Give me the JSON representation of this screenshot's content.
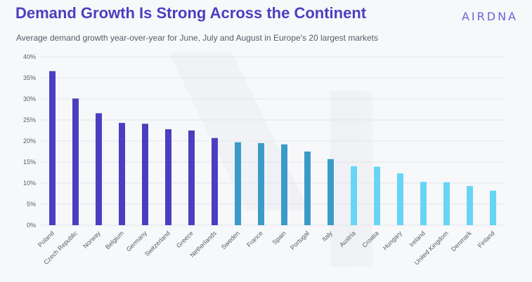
{
  "header": {
    "title": "Demand Growth Is Strong Across the Continent",
    "subtitle": "Average demand growth year-over-year for June, July and August in Europe's 20 largest markets",
    "logo": "AIRDNA"
  },
  "colors": {
    "bars": [
      "#4b3fc0",
      "#4b3fc0",
      "#4b3fc0",
      "#4b3fc0",
      "#4b3fc0",
      "#4b3fc0",
      "#4b3fc0",
      "#4b3fc0",
      "#3a9bc9",
      "#3a9bc9",
      "#3a9bc9",
      "#3a9bc9",
      "#3a9bc9",
      "#67d5f5",
      "#67d5f5",
      "#67d5f5",
      "#67d5f5",
      "#67d5f5",
      "#67d5f5",
      "#67d5f5"
    ],
    "grid": "#e2e5ea",
    "text": "#555c66"
  },
  "chart_data": {
    "type": "bar",
    "title": "Demand Growth Is Strong Across the Continent",
    "xlabel": "",
    "ylabel": "",
    "ylim": [
      0,
      40
    ],
    "y_ticks": [
      "0%",
      "5%",
      "10%",
      "15%",
      "20%",
      "25%",
      "30%",
      "35%",
      "40%"
    ],
    "grid": true,
    "categories": [
      "Poland",
      "Czech Republic",
      "Norway",
      "Belgium",
      "Germany",
      "Switzerland",
      "Greece",
      "Netherlands",
      "Sweden",
      "France",
      "Spain",
      "Portugal",
      "Italy",
      "Austria",
      "Croatia",
      "Hungary",
      "Ireland",
      "United Kingdom",
      "Denmark",
      "Finland"
    ],
    "values": [
      36.6,
      30.1,
      26.6,
      24.3,
      24.1,
      22.8,
      22.5,
      20.7,
      19.7,
      19.5,
      19.2,
      17.5,
      15.7,
      14.0,
      13.9,
      12.3,
      10.3,
      10.2,
      9.3,
      8.2
    ]
  }
}
